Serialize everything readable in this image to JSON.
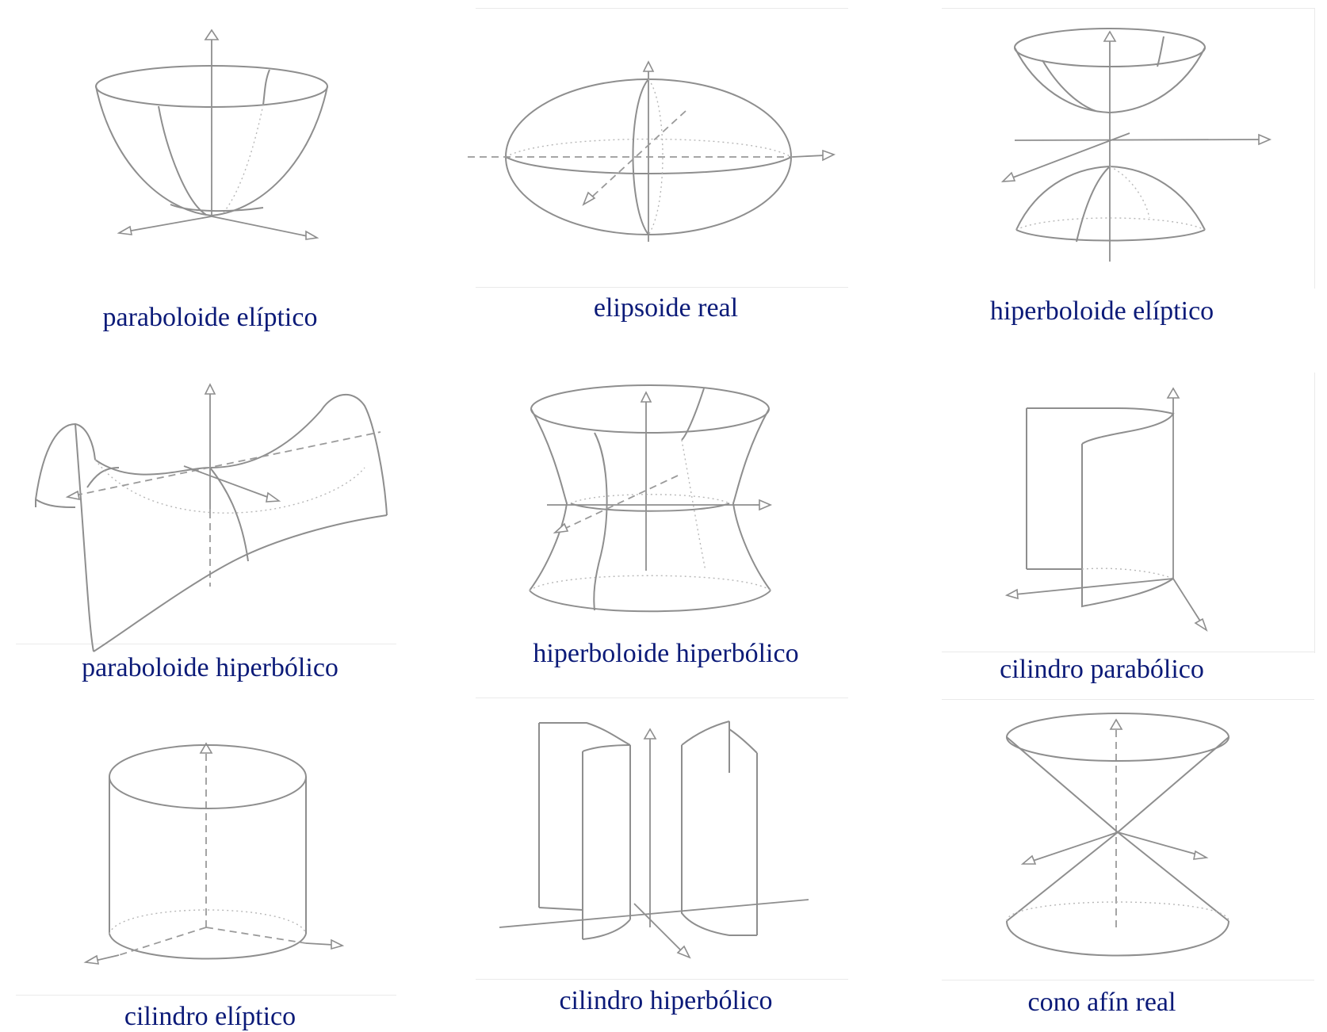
{
  "surfaces": [
    {
      "id": "paraboloide-eliptico",
      "label": "paraboloide elíptico"
    },
    {
      "id": "elipsoide-real",
      "label": "elipsoide real"
    },
    {
      "id": "hiperboloide-eliptico",
      "label": "hiperboloide elíptico"
    },
    {
      "id": "paraboloide-hiperbolico",
      "label": "paraboloide hiperbólico"
    },
    {
      "id": "hiperboloide-hiperbolico",
      "label": "hiperboloide hiperbólico"
    },
    {
      "id": "cilindro-parabolico",
      "label": "cilindro parabólico"
    },
    {
      "id": "cilindro-eliptico",
      "label": "cilindro elíptico"
    },
    {
      "id": "cilindro-hiperbolico",
      "label": "cilindro hiperbólico"
    },
    {
      "id": "cono-afin-real",
      "label": "cono afín real"
    }
  ],
  "colors": {
    "caption": "#0b1a78",
    "line": "#8e8e8e"
  }
}
